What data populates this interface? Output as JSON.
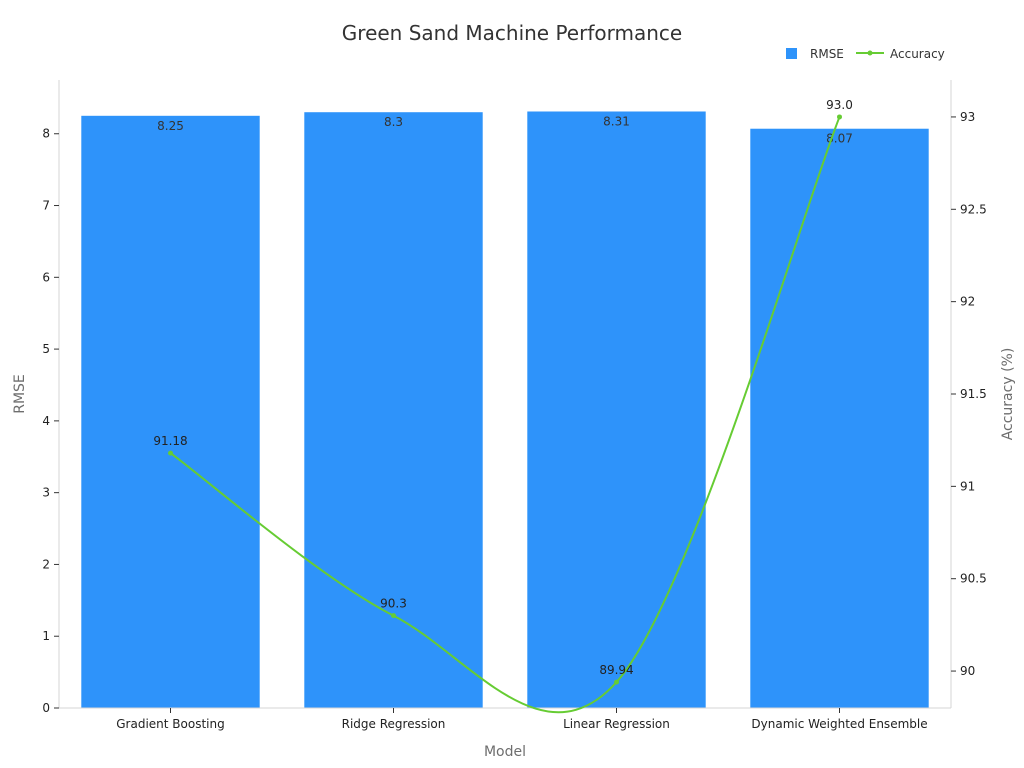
{
  "chart_data": {
    "type": "bar+line",
    "title": "Green Sand Machine Performance",
    "xlabel": "Model",
    "categories": [
      "Gradient Boosting",
      "Ridge Regression",
      "Linear Regression",
      "Dynamic Weighted Ensemble"
    ],
    "series": [
      {
        "name": "RMSE",
        "type": "bar",
        "axis": "left",
        "values": [
          8.25,
          8.3,
          8.31,
          8.07
        ],
        "labels": [
          "8.25",
          "8.3",
          "8.31",
          "8.07"
        ],
        "color": "#2e93fa"
      },
      {
        "name": "Accuracy",
        "type": "line",
        "axis": "right",
        "values": [
          91.18,
          90.3,
          89.94,
          93.0
        ],
        "labels": [
          "91.18",
          "90.3",
          "89.94",
          "93.0"
        ],
        "color": "#66cc33"
      }
    ],
    "y_left": {
      "label": "RMSE",
      "range": [
        0,
        8.7
      ],
      "ticks": [
        "0",
        "1",
        "2",
        "3",
        "4",
        "5",
        "6",
        "7",
        "8"
      ]
    },
    "y_right": {
      "label": "Accuracy (%)",
      "range": [
        89.8,
        93.2
      ],
      "ticks": [
        "90",
        "90.5",
        "91",
        "91.5",
        "92",
        "92.5",
        "93"
      ]
    },
    "legend": {
      "placement": "top-right",
      "items": [
        "RMSE",
        "Accuracy"
      ]
    },
    "grid": false
  }
}
